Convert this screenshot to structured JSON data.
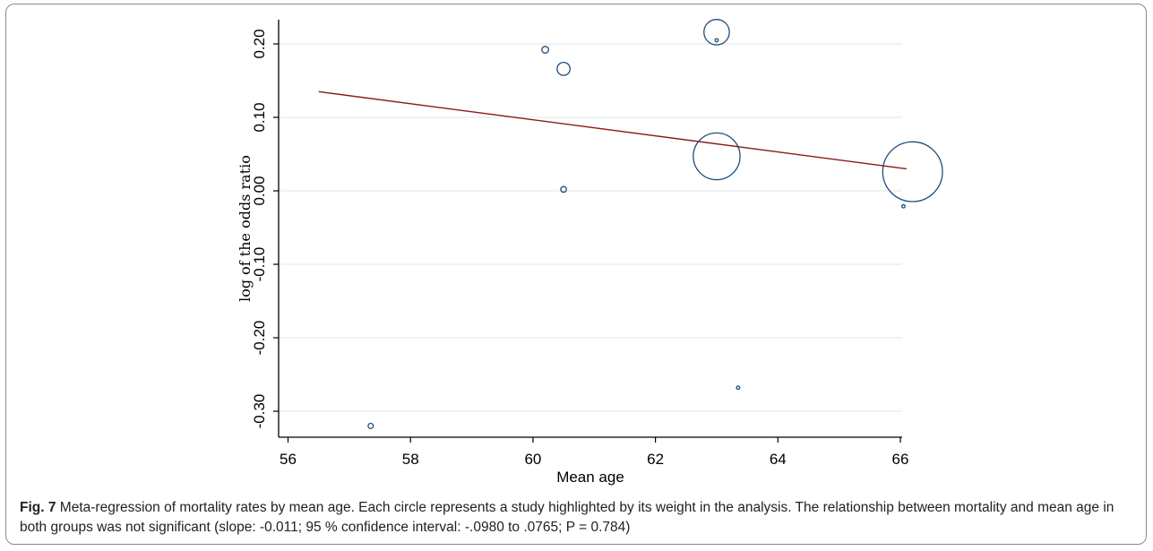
{
  "chart_data": {
    "type": "scatter",
    "xlabel": "Mean age",
    "ylabel": "log of the odds ratio",
    "xlim": [
      56,
      66.3
    ],
    "ylim": [
      -0.33,
      0.235
    ],
    "x_ticks": [
      56,
      58,
      60,
      62,
      64,
      66
    ],
    "y_ticks": [
      -0.3,
      -0.2,
      -0.1,
      0.0,
      0.1,
      0.2
    ],
    "y_tick_labels": [
      "-0.30",
      "-0.20",
      "-0.10",
      "0.00",
      "0.10",
      "0.20"
    ],
    "grid": "horizontal",
    "points": [
      {
        "x": 57.35,
        "y": -0.32,
        "weight": 1.0
      },
      {
        "x": 60.2,
        "y": 0.192,
        "weight": 1.3
      },
      {
        "x": 60.5,
        "y": 0.166,
        "weight": 2.5
      },
      {
        "x": 60.5,
        "y": 0.002,
        "weight": 1.1
      },
      {
        "x": 63.0,
        "y": 0.216,
        "weight": 4.9
      },
      {
        "x": 63.0,
        "y": 0.205,
        "weight": 0.6
      },
      {
        "x": 63.0,
        "y": 0.047,
        "weight": 9.0
      },
      {
        "x": 63.35,
        "y": -0.268,
        "weight": 0.5
      },
      {
        "x": 66.05,
        "y": -0.021,
        "weight": 0.5
      },
      {
        "x": 66.2,
        "y": 0.026,
        "weight": 11.5
      }
    ],
    "regression_line": {
      "x": [
        56.5,
        66.1
      ],
      "y": [
        0.135,
        0.03
      ]
    },
    "colors": {
      "marker": "#1f4e79",
      "line": "#8b1a1a",
      "grid": "#e3ecef",
      "axis": "#000000"
    }
  },
  "caption": {
    "label": "Fig. 7",
    "text": " Meta-regression of mortality rates by mean age. Each circle represents a study highlighted by its weight in the analysis. The relationship between mortality and mean age in both groups was not significant (slope: -0.011; 95 % confidence interval: -.0980 to .0765; P = 0.784)"
  }
}
